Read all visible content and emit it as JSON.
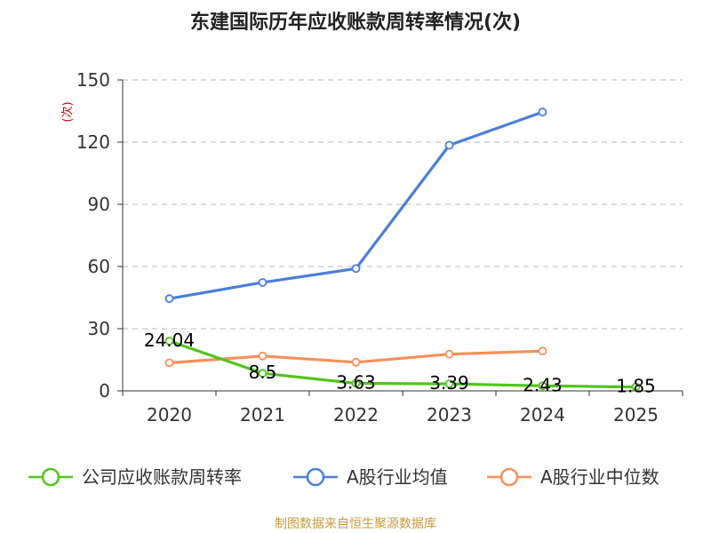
{
  "chart_data": {
    "type": "line",
    "title": "东建国际历年应收账款周转率情况(次)",
    "ylabel": "(次)",
    "xlabel": "",
    "categories": [
      "2020",
      "2021",
      "2022",
      "2023",
      "2024",
      "2025"
    ],
    "ylim": [
      0,
      150
    ],
    "yticks": [
      0,
      30,
      60,
      90,
      120,
      150
    ],
    "grid": true,
    "legend_position": "bottom",
    "series": [
      {
        "name": "公司应收账款周转率",
        "color": "#52c41a",
        "values": [
          24.04,
          8.5,
          3.63,
          3.39,
          2.43,
          1.85
        ],
        "labels": [
          "24.04",
          "8.5",
          "3.63",
          "3.39",
          "2.43",
          "1.85"
        ]
      },
      {
        "name": "A股行业均值",
        "color": "#4a7fdb",
        "values": [
          44.5,
          52.3,
          59.0,
          118.5,
          134.5,
          null
        ]
      },
      {
        "name": "A股行业中位数",
        "color": "#f7905a",
        "values": [
          13.5,
          16.8,
          13.8,
          17.7,
          19.2,
          null
        ]
      }
    ]
  },
  "source": "制图数据来自恒生聚源数据库"
}
